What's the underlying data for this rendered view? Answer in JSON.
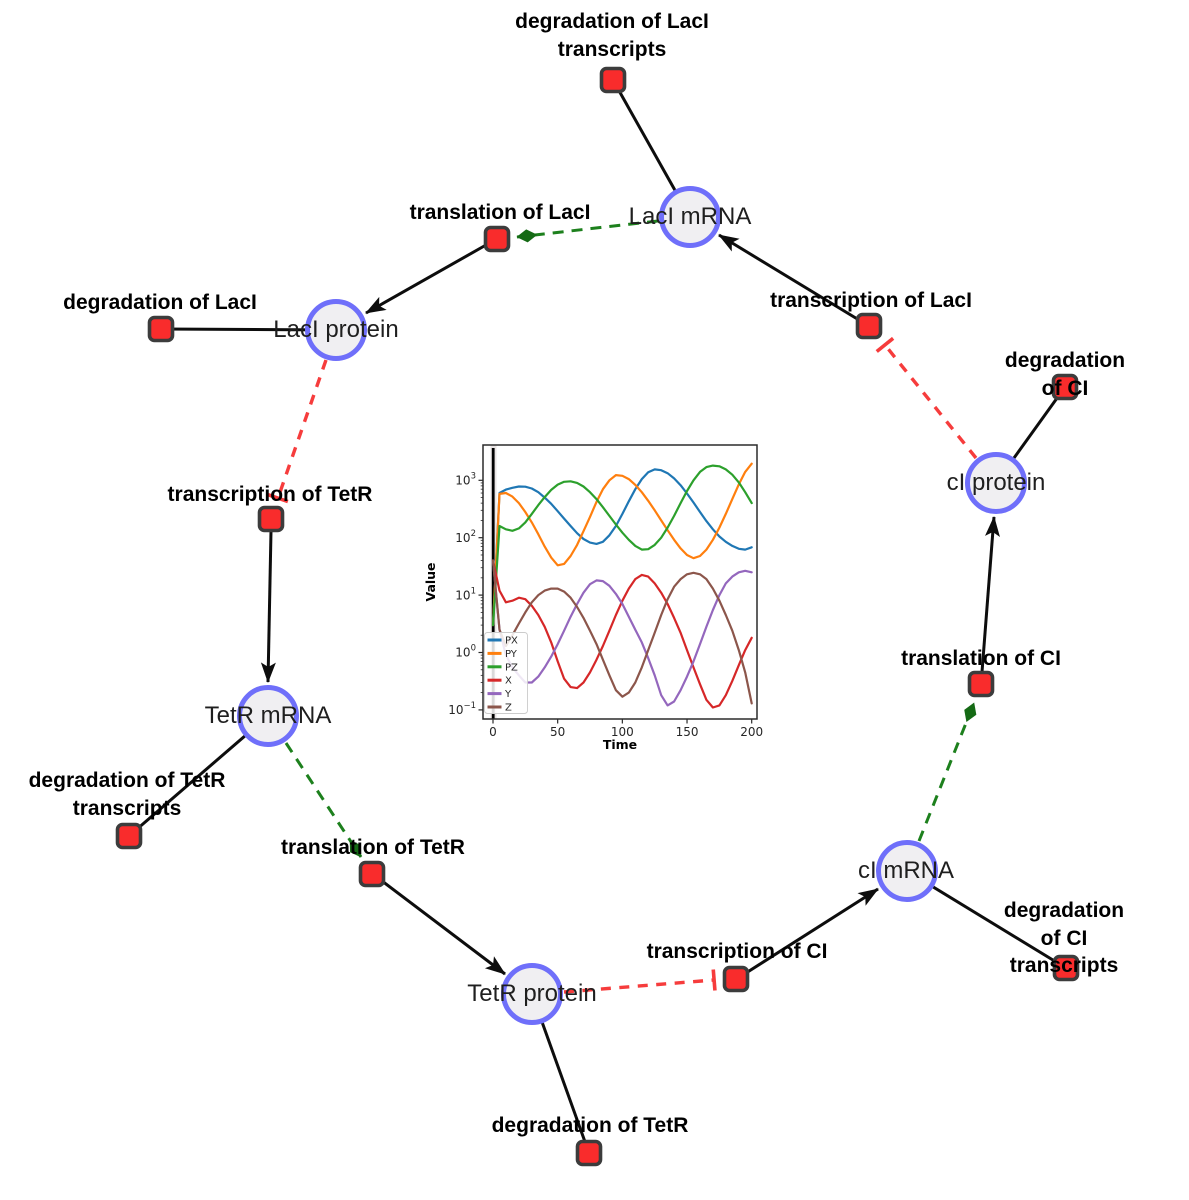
{
  "diagram": {
    "species": [
      {
        "id": "laci-mrna",
        "label": "LacI mRNA"
      },
      {
        "id": "laci-protein",
        "label": "LacI protein"
      },
      {
        "id": "tetr-mrna",
        "label": "TetR mRNA"
      },
      {
        "id": "tetr-protein",
        "label": "TetR protein"
      },
      {
        "id": "ci-mrna",
        "label": "cI mRNA"
      },
      {
        "id": "ci-protein",
        "label": "cI protein"
      }
    ],
    "reactions": [
      {
        "id": "deg-laci-transcripts",
        "label": "degradation of LacI\ntranscripts"
      },
      {
        "id": "translation-laci",
        "label": "translation of LacI"
      },
      {
        "id": "deg-laci",
        "label": "degradation of LacI"
      },
      {
        "id": "transcription-laci",
        "label": "transcription of LacI"
      },
      {
        "id": "deg-ci",
        "label": "degradation of CI"
      },
      {
        "id": "transcription-tetr",
        "label": "transcription of TetR"
      },
      {
        "id": "deg-tetr-transcripts",
        "label": "degradation of TetR\ntranscripts"
      },
      {
        "id": "translation-tetr",
        "label": "translation of TetR"
      },
      {
        "id": "deg-tetr",
        "label": "degradation of TetR"
      },
      {
        "id": "transcription-ci",
        "label": "transcription of CI"
      },
      {
        "id": "deg-ci-transcripts",
        "label": "degradation of CI\ntranscripts"
      },
      {
        "id": "translation-ci",
        "label": "translation of CI"
      }
    ],
    "edges": [
      {
        "source": "laci-mrna",
        "target": "deg-laci-transcripts",
        "type": "consumption"
      },
      {
        "source": "laci-protein",
        "target": "deg-laci",
        "type": "consumption"
      },
      {
        "source": "ci-protein",
        "target": "deg-ci",
        "type": "consumption"
      },
      {
        "source": "tetr-mrna",
        "target": "deg-tetr-transcripts",
        "type": "consumption"
      },
      {
        "source": "tetr-protein",
        "target": "deg-tetr",
        "type": "consumption"
      },
      {
        "source": "ci-mrna",
        "target": "deg-ci-transcripts",
        "type": "consumption"
      },
      {
        "source": "transcription-laci",
        "target": "laci-mrna",
        "type": "production"
      },
      {
        "source": "transcription-tetr",
        "target": "tetr-mrna",
        "type": "production"
      },
      {
        "source": "transcription-ci",
        "target": "ci-mrna",
        "type": "production"
      },
      {
        "source": "translation-laci",
        "target": "laci-protein",
        "type": "production"
      },
      {
        "source": "translation-tetr",
        "target": "tetr-protein",
        "type": "production"
      },
      {
        "source": "translation-ci",
        "target": "ci-protein",
        "type": "production"
      },
      {
        "source": "laci-mrna",
        "target": "translation-laci",
        "type": "modifier"
      },
      {
        "source": "tetr-mrna",
        "target": "translation-tetr",
        "type": "modifier"
      },
      {
        "source": "ci-mrna",
        "target": "translation-ci",
        "type": "modifier"
      },
      {
        "source": "laci-protein",
        "target": "transcription-tetr",
        "type": "inhibition"
      },
      {
        "source": "ci-protein",
        "target": "transcription-laci",
        "type": "inhibition"
      },
      {
        "source": "tetr-protein",
        "target": "transcription-ci",
        "type": "inhibition"
      }
    ],
    "colors": {
      "species_fill": "#f0eff2",
      "species_border": "#6f6ffa",
      "reaction_fill": "#f92c2c",
      "reaction_border": "#3c3c3c",
      "edge_black": "#0d0d0d",
      "modifier_green": "#1d801d",
      "inhibition_red": "#f63c3c"
    }
  },
  "chart_data": {
    "type": "line",
    "title": "",
    "xlabel": "Time",
    "ylabel": "Value",
    "xlim": [
      0,
      200
    ],
    "xticks": [
      0,
      50,
      100,
      150,
      200
    ],
    "yscale": "log",
    "yticks_exponents": [
      -1,
      0,
      1,
      2,
      3
    ],
    "legend_position": "lower left",
    "grid": false,
    "annotations": {
      "event_line_x": 0
    },
    "x": [
      0,
      5,
      10,
      15,
      20,
      25,
      30,
      35,
      40,
      45,
      50,
      55,
      60,
      65,
      70,
      75,
      80,
      85,
      90,
      95,
      100,
      105,
      110,
      115,
      120,
      125,
      130,
      135,
      140,
      145,
      150,
      155,
      160,
      165,
      170,
      175,
      180,
      185,
      190,
      195,
      200
    ],
    "series": [
      {
        "name": "PX",
        "color": "#1f77b4",
        "values": [
          3,
          600,
          690,
          740,
          780,
          775,
          720,
          620,
          500,
          390,
          290,
          215,
          160,
          120,
          95,
          82,
          78,
          85,
          110,
          160,
          260,
          430,
          700,
          1050,
          1380,
          1550,
          1500,
          1330,
          1080,
          820,
          590,
          410,
          280,
          195,
          140,
          105,
          85,
          72,
          64,
          62,
          68
        ]
      },
      {
        "name": "PY",
        "color": "#ff7f0e",
        "values": [
          3,
          580,
          600,
          520,
          400,
          280,
          185,
          115,
          70,
          45,
          33,
          35,
          48,
          75,
          130,
          230,
          420,
          700,
          1000,
          1230,
          1200,
          1050,
          830,
          620,
          440,
          300,
          200,
          135,
          92,
          65,
          50,
          44,
          48,
          62,
          92,
          150,
          260,
          470,
          850,
          1400,
          1950
        ]
      },
      {
        "name": "PZ",
        "color": "#2ca02c",
        "values": [
          3,
          160,
          140,
          132,
          145,
          185,
          260,
          370,
          510,
          680,
          840,
          940,
          960,
          900,
          780,
          620,
          470,
          340,
          240,
          170,
          122,
          92,
          72,
          62,
          63,
          75,
          100,
          150,
          240,
          400,
          650,
          1000,
          1400,
          1700,
          1800,
          1750,
          1550,
          1250,
          920,
          620,
          400
        ]
      },
      {
        "name": "X",
        "color": "#d62728",
        "values": [
          40,
          12,
          7.5,
          8,
          9,
          8.5,
          6.5,
          4.5,
          2.8,
          1.5,
          0.7,
          0.35,
          0.25,
          0.24,
          0.3,
          0.45,
          0.75,
          1.3,
          2.4,
          4.5,
          8,
          13,
          19,
          22.5,
          21,
          16,
          11,
          7,
          4,
          2.2,
          1.1,
          0.55,
          0.28,
          0.15,
          0.11,
          0.12,
          0.18,
          0.32,
          0.6,
          1.1,
          1.8
        ]
      },
      {
        "name": "Y",
        "color": "#9467bd",
        "values": [
          40,
          2.5,
          0.9,
          0.55,
          0.4,
          0.3,
          0.3,
          0.38,
          0.55,
          0.85,
          1.4,
          2.4,
          4.2,
          7,
          11,
          15.5,
          18,
          17.5,
          14.5,
          10.5,
          7,
          4.2,
          2.5,
          1.5,
          0.8,
          0.4,
          0.18,
          0.12,
          0.14,
          0.22,
          0.38,
          0.7,
          1.4,
          2.8,
          5.5,
          10,
          16,
          21,
          25,
          26.5,
          25
        ]
      },
      {
        "name": "Z",
        "color": "#8c564b",
        "values": [
          40,
          2.5,
          1.3,
          2,
          3.2,
          5,
          7.5,
          10,
          12,
          13,
          13,
          11.5,
          9,
          6.2,
          4,
          2.4,
          1.4,
          0.75,
          0.4,
          0.22,
          0.17,
          0.2,
          0.3,
          0.55,
          1.1,
          2.2,
          4.5,
          8.5,
          14,
          19,
          23,
          24.5,
          23,
          19,
          13,
          8,
          4.5,
          2.4,
          1.1,
          0.45,
          0.13
        ]
      }
    ]
  }
}
